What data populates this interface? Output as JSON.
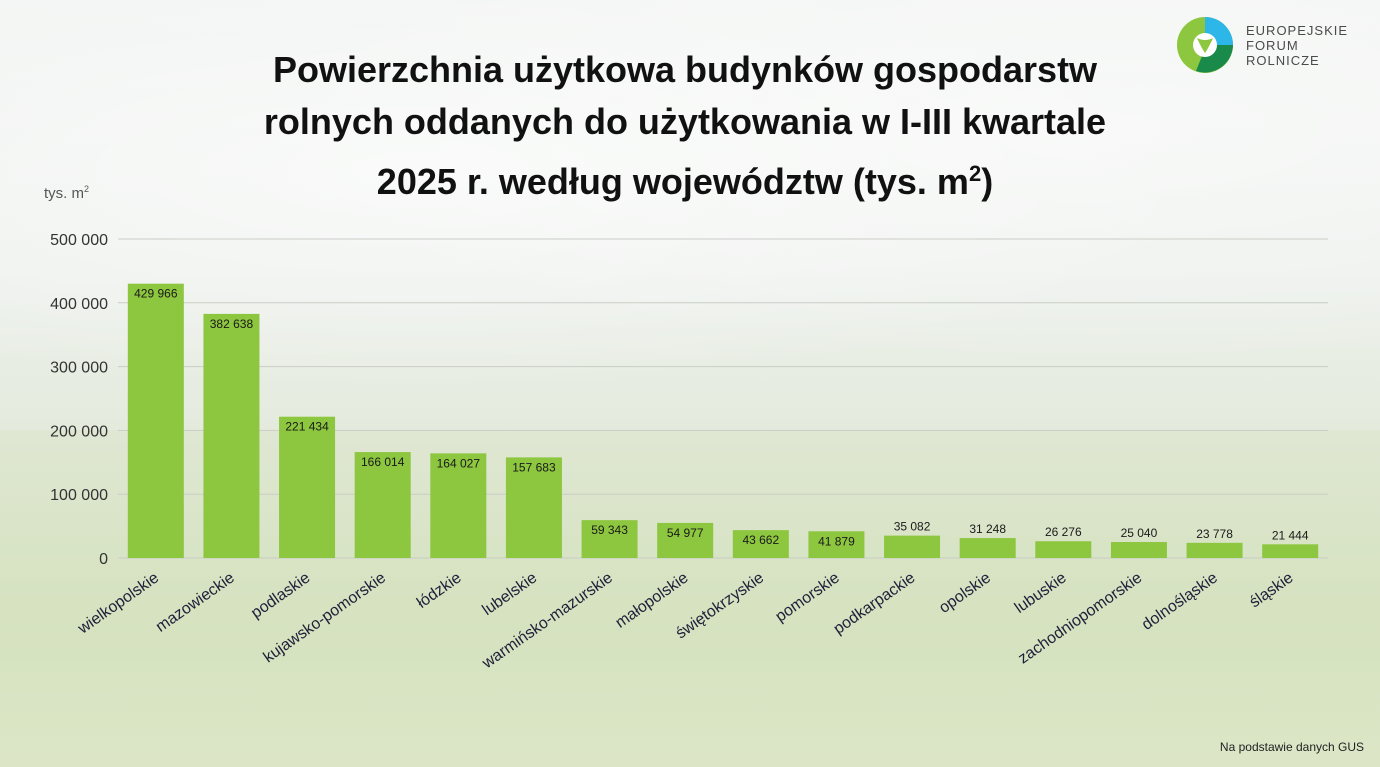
{
  "logo": {
    "lines": [
      "EUROPEJSKIE",
      "FORUM",
      "ROLNICZE"
    ]
  },
  "unit_label": "tys. m",
  "unit_sup": "2",
  "source": "Na podstawie danych GUS",
  "chart_data": {
    "type": "bar",
    "title": "Powierzchnia użytkowa budynków gospodarstw rolnych oddanych do użytkowania w I-III kwartale 2025 r. według województw (tys. m²)",
    "title_lines": [
      "Powierzchnia użytkowa budynków gospodarstw",
      "rolnych oddanych do użytkowania w I-III kwartale",
      "2025 r. według województw (tys. m"
    ],
    "title_sup": "2",
    "title_end": ")",
    "ylabel": "tys. m²",
    "ylim": [
      0,
      500000
    ],
    "yticks": [
      0,
      100000,
      200000,
      300000,
      400000,
      500000
    ],
    "ytick_labels": [
      "0",
      "100 000",
      "200 000",
      "300 000",
      "400 000",
      "500 000"
    ],
    "grid": true,
    "bar_color": "#8dc63f",
    "categories": [
      "wielkopolskie",
      "mazowieckie",
      "podlaskie",
      "kujawsko-pomorskie",
      "łódzkie",
      "lubelskie",
      "warmińsko-mazurskie",
      "małopolskie",
      "świętokrzyskie",
      "pomorskie",
      "podkarpackie",
      "opolskie",
      "lubuskie",
      "zachodniopomorskie",
      "dolnośląskie",
      "śląskie"
    ],
    "values": [
      429966,
      382638,
      221434,
      166014,
      164027,
      157683,
      59343,
      54977,
      43662,
      41879,
      35082,
      31248,
      26276,
      25040,
      23778,
      21444
    ],
    "value_labels": [
      "429 966",
      "382 638",
      "221 434",
      "166 014",
      "164 027",
      "157 683",
      "59 343",
      "54 977",
      "43 662",
      "41 879",
      "35 082",
      "31 248",
      "26 276",
      "25 040",
      "23 778",
      "21 444"
    ]
  }
}
